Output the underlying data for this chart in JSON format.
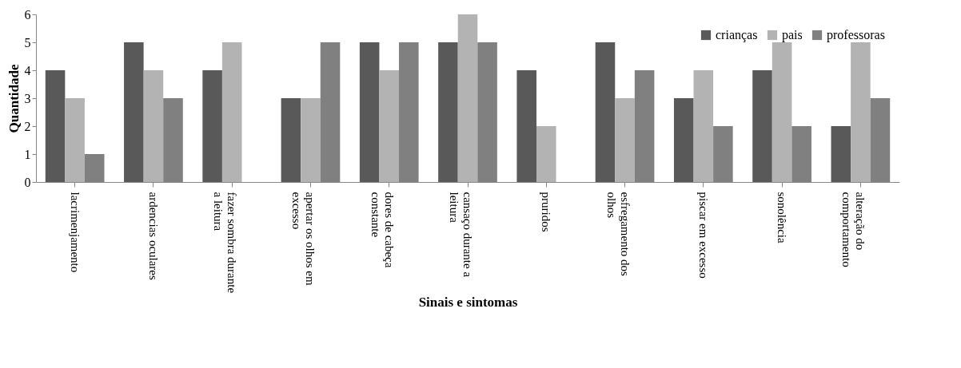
{
  "chart_data": {
    "type": "bar",
    "xlabel": "Sinais e sintomas",
    "ylabel": "Quantidade",
    "categories": [
      "lacrimenjamento",
      "ardencias oculares",
      "fazer sombra durante\na leitura",
      "apertar os olhos em\nexcesso",
      "dores de cabeça\nconstante",
      "cansaço durante a\nleitura",
      "pruridos",
      "esfregamento dos\nolhos",
      "piscar em excesso",
      "sonolência",
      "alteração do\ncomportamento"
    ],
    "series": [
      {
        "name": "crianças",
        "color": "#595959",
        "values": [
          4,
          5,
          4,
          3,
          5,
          5,
          4,
          5,
          3,
          4,
          2
        ]
      },
      {
        "name": "pais",
        "color": "#b3b3b3",
        "values": [
          3,
          4,
          5,
          3,
          4,
          6,
          2,
          3,
          4,
          5,
          5
        ]
      },
      {
        "name": "professoras",
        "color": "#808080",
        "values": [
          1,
          3,
          0,
          5,
          5,
          5,
          0,
          4,
          2,
          2,
          3
        ]
      }
    ],
    "ylim": [
      0,
      6
    ],
    "yticks": [
      0,
      1,
      2,
      3,
      4,
      5,
      6
    ],
    "grid": false,
    "legend": "top right"
  }
}
